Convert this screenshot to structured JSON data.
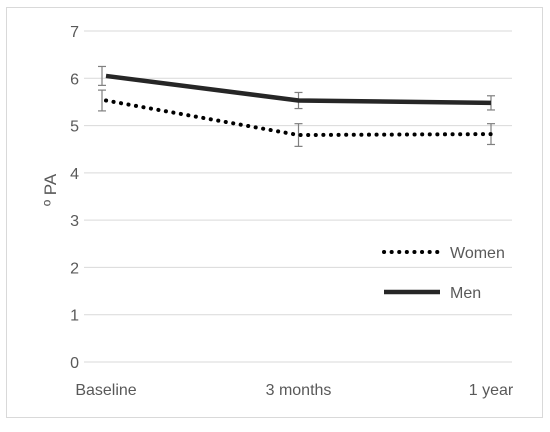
{
  "chart_data": {
    "type": "line",
    "title": "",
    "xlabel": "",
    "ylabel": "º PA",
    "categories": [
      "Baseline",
      "3 months",
      "1 year"
    ],
    "ylim": [
      0,
      7
    ],
    "yticks": [
      "0",
      "1",
      "2",
      "3",
      "4",
      "5",
      "6",
      "7"
    ],
    "grid": true,
    "legend_position": "right",
    "series": [
      {
        "name": "Women",
        "style": "dotted",
        "color": "#000000",
        "values": [
          5.53,
          4.8,
          4.82
        ],
        "error": [
          0.22,
          0.24,
          0.22
        ]
      },
      {
        "name": "Men",
        "style": "solid",
        "color": "#262626",
        "values": [
          6.05,
          5.53,
          5.48
        ],
        "error": [
          0.2,
          0.17,
          0.15
        ]
      }
    ]
  }
}
